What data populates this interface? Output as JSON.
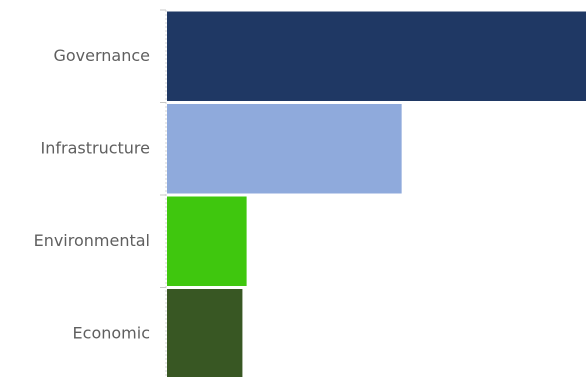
{
  "chart_data": {
    "type": "bar",
    "orientation": "horizontal",
    "categories": [
      "Governance",
      "Infrastructure",
      "Environmental",
      "Economic"
    ],
    "values": [
      100,
      56,
      19,
      18
    ],
    "colors": [
      "#1f3864",
      "#8faadc",
      "#3fc70e",
      "#385723"
    ],
    "xlim": [
      0,
      100
    ],
    "title": "",
    "xlabel": "",
    "ylabel": "",
    "grid": false,
    "legend": "none"
  }
}
